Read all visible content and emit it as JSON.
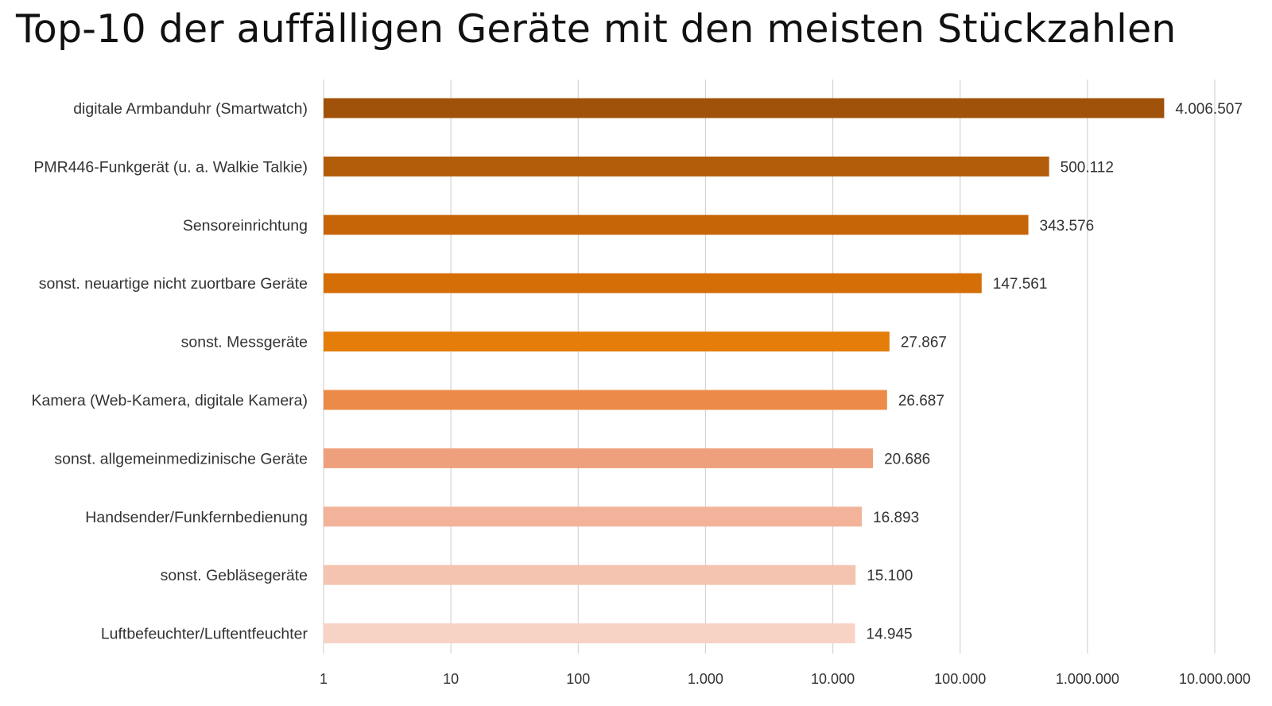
{
  "chart_data": {
    "type": "bar",
    "orientation": "horizontal",
    "title": "Top-10 der auffälligen Geräte mit den meisten Stückzahlen",
    "xscale": "log",
    "xlim": [
      1,
      10000000
    ],
    "ticks": [
      1,
      10,
      100,
      1000,
      10000,
      100000,
      1000000,
      10000000
    ],
    "tick_labels": [
      "1",
      "10",
      "100",
      "1.000",
      "10.000",
      "100.000",
      "1.000.000",
      "10.000.000"
    ],
    "grid": true,
    "categories": [
      "digitale Armbanduhr (Smartwatch)",
      "PMR446-Funkgerät (u. a. Walkie Talkie)",
      "Sensoreinrichtung",
      "sonst. neuartige nicht zuortbare Geräte",
      "sonst. Messgeräte",
      "Kamera (Web-Kamera, digitale Kamera)",
      "sonst. allgemeinmedizinische Geräte",
      "Handsender/Funkfernbedienung",
      "sonst. Gebläsegeräte",
      "Luftbefeuchter/Luftentfeuchter"
    ],
    "values": [
      4006507,
      500112,
      343576,
      147561,
      27867,
      26687,
      20686,
      16893,
      15100,
      14945
    ],
    "value_labels": [
      "4.006.507",
      "500.112",
      "343.576",
      "147.561",
      "27.867",
      "26.687",
      "20.686",
      "16.893",
      "15.100",
      "14.945"
    ],
    "bar_colors": [
      "#a0520a",
      "#b25d09",
      "#c66508",
      "#d56e06",
      "#e57d0b",
      "#ec8b48",
      "#eea07d",
      "#f2b39a",
      "#f5c4b0",
      "#f7d3c5"
    ],
    "text_color": "#333333",
    "grid_color": "#d4d4d4"
  }
}
